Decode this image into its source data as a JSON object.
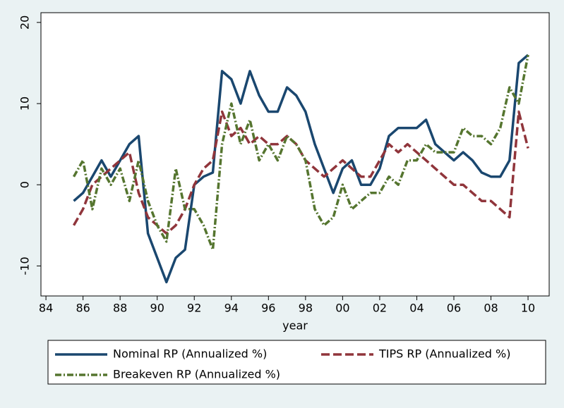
{
  "chart_data": {
    "type": "line",
    "x_label": "year",
    "x": [
      1985.5,
      1986,
      1986.5,
      1987,
      1987.5,
      1988,
      1988.5,
      1989,
      1989.5,
      1990,
      1990.5,
      1991,
      1991.5,
      1992,
      1992.5,
      1993,
      1993.5,
      1994,
      1994.5,
      1995,
      1995.5,
      1996,
      1996.5,
      1997,
      1997.5,
      1998,
      1998.5,
      1999,
      1999.5,
      2000,
      2000.5,
      2001,
      2001.5,
      2002,
      2002.5,
      2003,
      2003.5,
      2004,
      2004.5,
      2005,
      2005.5,
      2006,
      2006.5,
      2007,
      2007.5,
      2008,
      2008.5,
      2009,
      2009.5,
      2010
    ],
    "series": [
      {
        "name": "Nominal RP (Annualized %)",
        "color": "#1a476f",
        "values": [
          -2,
          -1,
          1,
          3,
          1,
          3,
          5,
          6,
          -6,
          -9,
          -12,
          -9,
          -8,
          0,
          1,
          1.5,
          14,
          13,
          10,
          14,
          11,
          9,
          9,
          12,
          11,
          9,
          5,
          2,
          -1,
          2,
          3,
          0,
          0,
          2,
          6,
          7,
          7,
          7,
          8,
          5,
          4,
          3,
          4,
          3,
          1.5,
          1,
          1,
          3,
          15,
          16
        ]
      },
      {
        "name": "TIPS RP (Annualized %)",
        "color": "#90353b",
        "values": [
          -5,
          -3,
          0,
          1,
          2,
          3,
          4,
          -1,
          -4,
          -5,
          -6,
          -5,
          -3,
          0,
          2,
          3,
          9,
          6,
          7,
          5,
          6,
          5,
          5,
          6,
          5,
          3,
          2,
          1,
          2,
          3,
          2,
          1,
          1,
          3,
          5,
          4,
          5,
          4,
          3,
          2,
          1,
          0,
          0,
          -1,
          -2,
          -2,
          -3,
          -4,
          9,
          4.5
        ]
      },
      {
        "name": "Breakeven RP (Annualized %)",
        "color": "#55752f",
        "values": [
          1,
          3,
          -3,
          2,
          0,
          2,
          -2,
          3,
          -2,
          -5,
          -7,
          2,
          -3,
          -3,
          -5,
          -8,
          5,
          10,
          5,
          8,
          3,
          5,
          3,
          6,
          5,
          3,
          -3,
          -5,
          -4,
          0,
          -3,
          -2,
          -1,
          -1,
          1,
          0,
          3,
          3,
          5,
          4,
          4,
          4,
          7,
          6,
          6,
          5,
          7,
          12,
          10,
          16
        ]
      }
    ],
    "xlim": [
      1983.73,
      2011.14
    ],
    "xticks": [
      {
        "value": 1984,
        "label": "84"
      },
      {
        "value": 1986,
        "label": "86"
      },
      {
        "value": 1988,
        "label": "88"
      },
      {
        "value": 1990,
        "label": "90"
      },
      {
        "value": 1992,
        "label": "92"
      },
      {
        "value": 1994,
        "label": "94"
      },
      {
        "value": 1996,
        "label": "96"
      },
      {
        "value": 1998,
        "label": "98"
      },
      {
        "value": 2000,
        "label": "00"
      },
      {
        "value": 2002,
        "label": "02"
      },
      {
        "value": 2004,
        "label": "04"
      },
      {
        "value": 2006,
        "label": "06"
      },
      {
        "value": 2008,
        "label": "08"
      },
      {
        "value": 2010,
        "label": "10"
      }
    ],
    "ylim": [
      -13.7,
      21.2
    ],
    "yticks": [
      -10,
      0,
      10,
      20
    ]
  }
}
